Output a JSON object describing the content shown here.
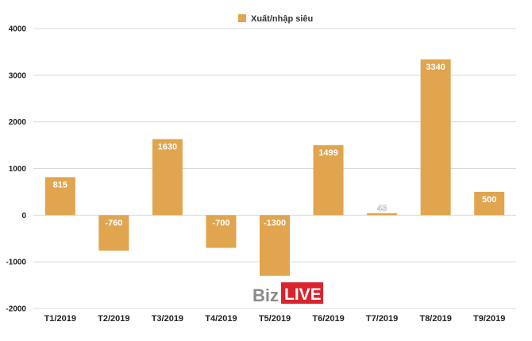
{
  "chart_data": {
    "type": "bar",
    "categories": [
      "T1/2019",
      "T2/2019",
      "T3/2019",
      "T4/2019",
      "T5/2019",
      "T6/2019",
      "T7/2019",
      "T8/2019",
      "T9/2019"
    ],
    "series": [
      {
        "name": "Xuất/nhập siêu",
        "values": [
          815,
          -760,
          1630,
          -700,
          -1300,
          1499,
          43,
          3340,
          500
        ]
      }
    ],
    "data_labels": [
      "815",
      "-760",
      "1630",
      "-700",
      "-1300",
      "1499",
      "43",
      "3340",
      "500"
    ],
    "y_ticks": [
      -2000,
      -1000,
      0,
      1000,
      2000,
      3000,
      4000
    ],
    "ylim": [
      -2000,
      4000
    ],
    "grid": true,
    "legend_position": "top-center",
    "colors": {
      "bar": "#E0A54E",
      "grid": "#d9d9d9",
      "text": "#222222"
    }
  },
  "watermark": {
    "part1": "Biz",
    "part2": "LIVE",
    "color2_bg": "#d9232d"
  }
}
